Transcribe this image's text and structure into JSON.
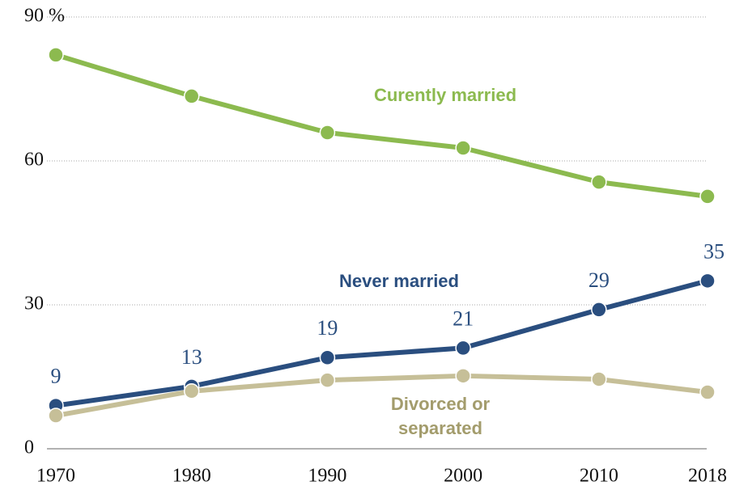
{
  "chart_data": {
    "type": "line",
    "x": [
      1970,
      1980,
      1990,
      2000,
      2010,
      2018
    ],
    "xlim": [
      1970,
      2018
    ],
    "xticks": [
      1970,
      1980,
      1990,
      2000,
      2010,
      2018
    ],
    "ylim": [
      0,
      90
    ],
    "yticks": [
      0,
      30,
      60,
      {
        "value": 90,
        "label": "90 %"
      }
    ],
    "grid": true,
    "series": [
      {
        "name": "Curently married",
        "color": "#8cba4f",
        "values": [
          82.1,
          73.5,
          65.9,
          62.7,
          55.6,
          52.6
        ]
      },
      {
        "name": "Never married",
        "color": "#2a4e7f",
        "values": [
          9,
          13,
          19,
          21,
          29,
          35
        ],
        "data_labels": true
      },
      {
        "name": "Divorced or separated",
        "color": "#c6bf98",
        "label_color": "#a39c6c",
        "values": [
          6.9,
          12.0,
          14.3,
          15.2,
          14.5,
          11.8
        ]
      }
    ]
  }
}
